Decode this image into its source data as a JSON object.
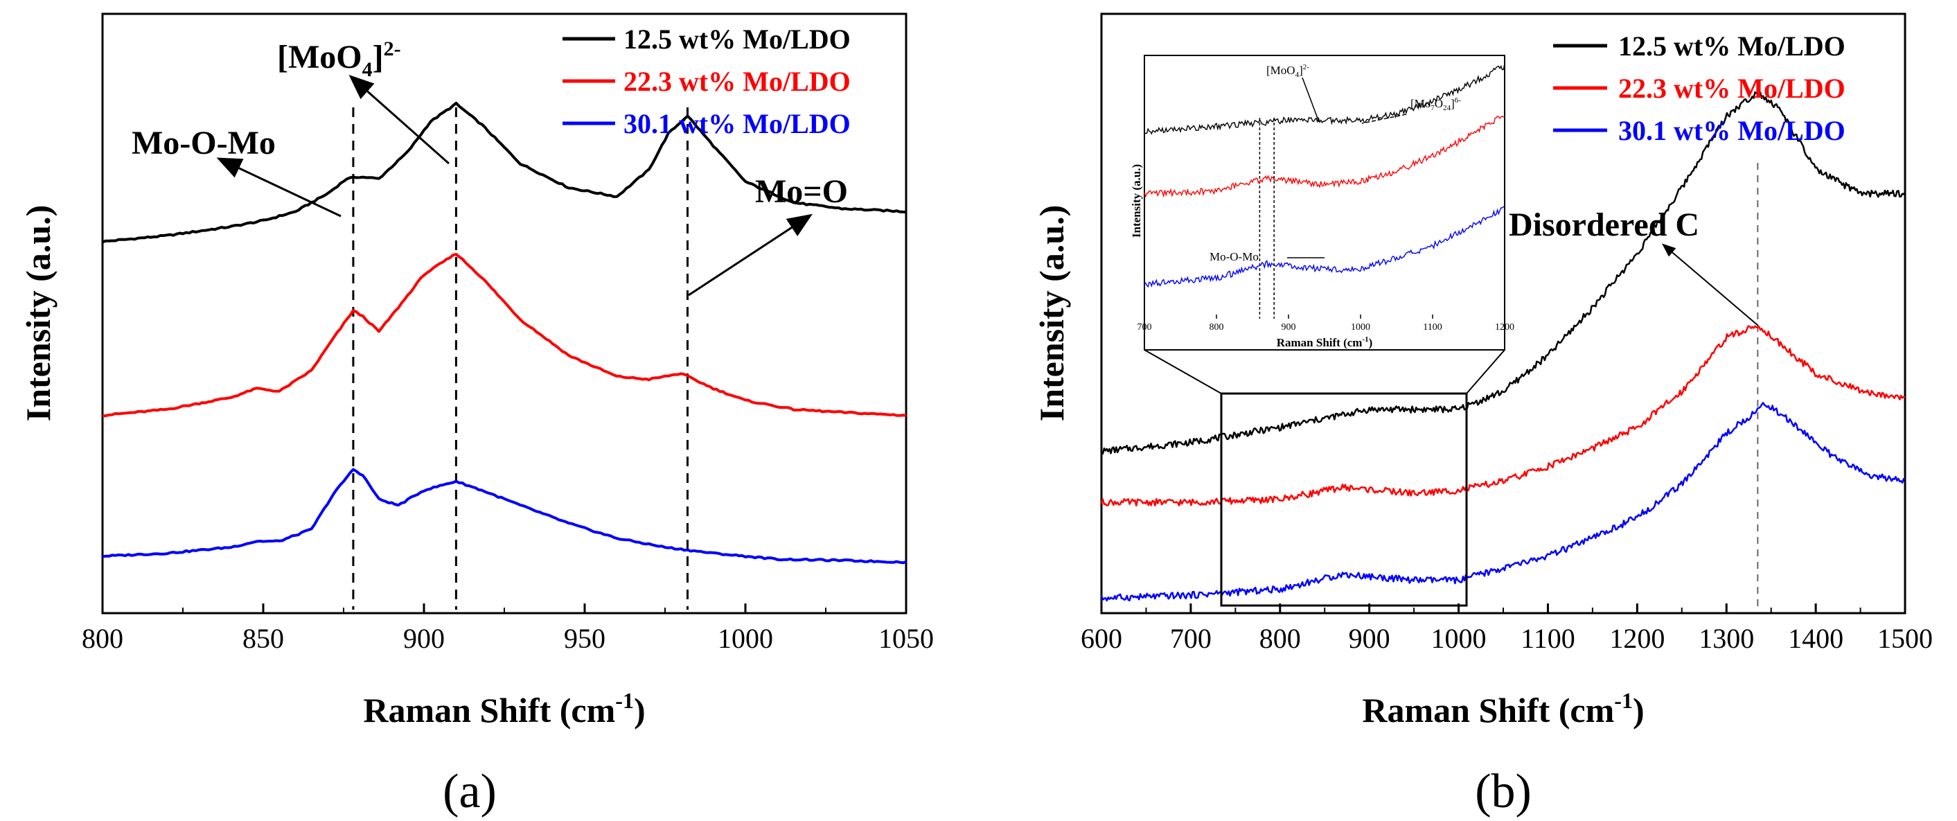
{
  "colors": {
    "s1": "#000000",
    "s2": "#ff0000",
    "s3": "#0000ff"
  },
  "panels": {
    "a": {
      "label": "(a)"
    },
    "b": {
      "label": "(b)"
    }
  },
  "chart_data": [
    {
      "id": "a",
      "type": "line",
      "xlabel": "Raman Shift (cm",
      "xlabel_sup": "-1",
      "xlabel_end": ")",
      "ylabel": "Intensity (a.u.)",
      "xlim": [
        800,
        1050
      ],
      "ylim": [
        0,
        100
      ],
      "xticks": [
        800,
        850,
        900,
        950,
        1000,
        1050
      ],
      "legend_position": "top-right",
      "series": [
        {
          "name": "12.5 wt% Mo/LDO",
          "color": "#000000",
          "x": [
            800,
            820,
            840,
            850,
            860,
            870,
            876,
            880,
            886,
            895,
            902,
            910,
            918,
            930,
            945,
            960,
            970,
            976,
            982,
            990,
            1000,
            1015,
            1030,
            1050
          ],
          "y": [
            62.0,
            63.0,
            64.5,
            65.5,
            67.0,
            70.0,
            72.5,
            72.8,
            72.5,
            77.0,
            82.0,
            85.0,
            81.5,
            75.0,
            71.0,
            69.5,
            74.0,
            80.0,
            83.0,
            78.0,
            72.0,
            68.5,
            67.5,
            67.0
          ]
        },
        {
          "name": "22.3 wt% Mo/LDO",
          "color": "#ff0000",
          "x": [
            800,
            820,
            840,
            848,
            855,
            865,
            872,
            878,
            881,
            886,
            892,
            900,
            910,
            918,
            930,
            945,
            960,
            970,
            980,
            990,
            1000,
            1015,
            1030,
            1050
          ],
          "y": [
            33.0,
            34.0,
            36.0,
            37.5,
            37.0,
            40.5,
            46.0,
            50.5,
            49.5,
            47.0,
            51.0,
            56.5,
            60.0,
            56.0,
            49.0,
            43.0,
            39.5,
            39.0,
            40.0,
            37.5,
            35.5,
            34.0,
            33.5,
            33.0
          ]
        },
        {
          "name": "30.1 wt% Mo/LDO",
          "color": "#0000ff",
          "x": [
            800,
            820,
            840,
            848,
            855,
            865,
            872,
            878,
            881,
            886,
            892,
            900,
            910,
            918,
            930,
            945,
            960,
            975,
            990,
            1010,
            1030,
            1050
          ],
          "y": [
            9.5,
            10.0,
            11.0,
            12.0,
            12.0,
            14.0,
            20.0,
            24.0,
            23.0,
            19.0,
            18.0,
            20.5,
            22.0,
            20.5,
            18.0,
            15.0,
            12.5,
            11.0,
            10.0,
            9.0,
            8.8,
            8.5
          ]
        }
      ],
      "vlines": [
        878,
        910,
        982
      ],
      "annotations": [
        {
          "text": "Mo-O-Mo"
        },
        {
          "text": "[MoO",
          "sub": "4",
          "sup": "2-"
        },
        {
          "text": "Mo=O"
        }
      ]
    },
    {
      "id": "b",
      "type": "line",
      "xlabel": "Raman Shift (cm",
      "xlabel_sup": "-1",
      "xlabel_end": ")",
      "ylabel": "Intensity (a.u.)",
      "xlim": [
        600,
        1500
      ],
      "ylim": [
        0,
        100
      ],
      "xticks": [
        600,
        700,
        800,
        900,
        1000,
        1100,
        1200,
        1300,
        1400,
        1500
      ],
      "legend_position": "top-right",
      "series": [
        {
          "name": "12.5 wt% Mo/LDO",
          "color": "#000000",
          "x": [
            600,
            700,
            800,
            900,
            1000,
            1050,
            1100,
            1150,
            1200,
            1250,
            1300,
            1335,
            1360,
            1400,
            1450,
            1500
          ],
          "y": [
            27.0,
            28.5,
            31.0,
            34.0,
            34.0,
            37.0,
            43.0,
            51.0,
            60.0,
            71.0,
            83.0,
            87.0,
            84.0,
            74.0,
            70.0,
            70.0
          ]
        },
        {
          "name": "22.3 wt% Mo/LDO",
          "color": "#ff0000",
          "x": [
            600,
            700,
            800,
            870,
            950,
            1000,
            1050,
            1100,
            1150,
            1200,
            1250,
            1300,
            1335,
            1360,
            1400,
            1450,
            1500
          ],
          "y": [
            18.5,
            18.5,
            19.0,
            21.0,
            20.0,
            20.5,
            22.0,
            24.5,
            27.5,
            31.0,
            37.0,
            46.0,
            48.0,
            45.0,
            40.0,
            37.0,
            36.0
          ]
        },
        {
          "name": "30.1 wt% Mo/LDO",
          "color": "#0000ff",
          "x": [
            600,
            700,
            800,
            870,
            950,
            1000,
            1050,
            1100,
            1150,
            1200,
            1250,
            1300,
            1345,
            1380,
            1420,
            1460,
            1500
          ],
          "y": [
            2.5,
            3.0,
            4.0,
            6.5,
            5.5,
            5.5,
            7.5,
            9.5,
            12.5,
            16.0,
            21.5,
            30.0,
            35.0,
            31.0,
            26.0,
            23.0,
            22.0
          ]
        }
      ],
      "vlines": [
        1335
      ],
      "annotations": [
        {
          "text": "Disordered C"
        }
      ],
      "inset": {
        "xlabel": "Raman Shift (cm",
        "xlabel_sup": "-1",
        "xlabel_end": ")",
        "ylabel": "Intensity (a.u.)",
        "xlim": [
          700,
          1200
        ],
        "xticks": [
          700,
          800,
          900,
          1000,
          1100,
          1200
        ],
        "zoom_range": [
          735,
          1005
        ],
        "vlines": [
          860,
          880
        ],
        "annotations": [
          {
            "text": "[MoO",
            "sub": "4",
            "sup": "2-"
          },
          {
            "text": "[Mo",
            "sub": "7",
            "mid": "O",
            "sub2": "24",
            "sup": "6-"
          },
          {
            "text": "Mo-O-Mo"
          }
        ]
      }
    }
  ]
}
